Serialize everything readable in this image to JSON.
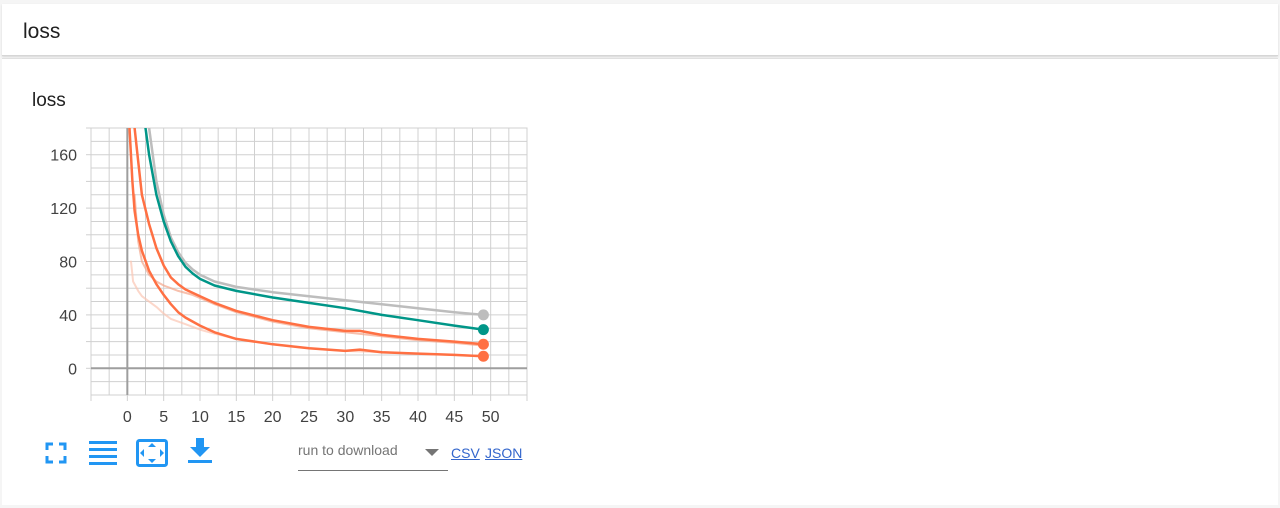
{
  "header": {
    "title": "loss"
  },
  "card": {
    "chart_title": "loss"
  },
  "toolbar": {
    "icons": [
      "fullscreen-icon",
      "toggle-log-scale-icon",
      "fit-domain-icon",
      "download-icon"
    ],
    "icon_color": "#2196f3"
  },
  "download": {
    "select_label": "run to download",
    "csv_label": "CSV",
    "json_label": "JSON"
  },
  "colors": {
    "grid": "#d0d0d0",
    "axis": "#9e9e9e",
    "accent": "#2196f3"
  },
  "chart_data": {
    "type": "line",
    "title": "loss",
    "xlabel": "",
    "ylabel": "",
    "xlim": [
      -5,
      55
    ],
    "ylim": [
      -20,
      180
    ],
    "x_ticks": [
      0,
      5,
      10,
      15,
      20,
      25,
      30,
      35,
      40,
      45,
      50
    ],
    "y_ticks": [
      0,
      40,
      80,
      120,
      160
    ],
    "grid": true,
    "series": [
      {
        "color": "#bdbdbd",
        "smoothed": false,
        "points": [
          [
            3,
            180
          ],
          [
            4,
            140
          ],
          [
            5,
            115
          ],
          [
            6,
            98
          ],
          [
            7,
            87
          ],
          [
            8,
            79
          ],
          [
            9,
            74
          ],
          [
            10,
            70
          ],
          [
            12,
            65
          ],
          [
            15,
            61
          ],
          [
            20,
            57
          ],
          [
            25,
            54
          ],
          [
            30,
            51
          ],
          [
            35,
            48
          ],
          [
            40,
            45
          ],
          [
            45,
            42
          ],
          [
            49,
            40
          ]
        ]
      },
      {
        "color": "#009688",
        "smoothed": false,
        "points": [
          [
            2.5,
            180
          ],
          [
            3,
            160
          ],
          [
            4,
            130
          ],
          [
            5,
            110
          ],
          [
            6,
            95
          ],
          [
            7,
            84
          ],
          [
            8,
            76
          ],
          [
            9,
            71
          ],
          [
            10,
            67
          ],
          [
            12,
            62
          ],
          [
            15,
            58
          ],
          [
            20,
            53
          ],
          [
            25,
            49
          ],
          [
            30,
            45
          ],
          [
            35,
            40
          ],
          [
            40,
            36
          ],
          [
            45,
            32
          ],
          [
            49,
            29
          ]
        ]
      },
      {
        "color": "#ff7043",
        "smoothed": true,
        "points": [
          [
            1,
            180
          ],
          [
            1.5,
            155
          ],
          [
            2,
            130
          ],
          [
            3,
            108
          ],
          [
            4,
            90
          ],
          [
            5,
            77
          ],
          [
            6,
            68
          ],
          [
            7,
            63
          ],
          [
            8,
            59
          ],
          [
            10,
            54
          ],
          [
            12,
            49
          ],
          [
            15,
            43
          ],
          [
            20,
            36
          ],
          [
            25,
            31
          ],
          [
            30,
            28
          ],
          [
            32,
            28
          ],
          [
            35,
            25
          ],
          [
            40,
            22
          ],
          [
            45,
            20
          ],
          [
            49,
            18
          ]
        ]
      },
      {
        "color": "#f4a58a",
        "smoothed": false,
        "points": [
          [
            1,
            130
          ],
          [
            1.5,
            95
          ],
          [
            2,
            80
          ],
          [
            3,
            70
          ],
          [
            4,
            65
          ],
          [
            5,
            62
          ],
          [
            6,
            60
          ],
          [
            7,
            58
          ],
          [
            9,
            55
          ],
          [
            12,
            48
          ],
          [
            15,
            42
          ],
          [
            20,
            35
          ],
          [
            25,
            30
          ],
          [
            30,
            27
          ],
          [
            35,
            24
          ],
          [
            40,
            21
          ],
          [
            45,
            19
          ],
          [
            49,
            17
          ]
        ]
      },
      {
        "color": "#ff7043",
        "smoothed": true,
        "points": [
          [
            0.3,
            180
          ],
          [
            0.7,
            140
          ],
          [
            1,
            118
          ],
          [
            1.5,
            100
          ],
          [
            2,
            88
          ],
          [
            3,
            73
          ],
          [
            4,
            63
          ],
          [
            5,
            55
          ],
          [
            6,
            48
          ],
          [
            7,
            42
          ],
          [
            8,
            38
          ],
          [
            10,
            32
          ],
          [
            12,
            27
          ],
          [
            15,
            22
          ],
          [
            20,
            18
          ],
          [
            25,
            15
          ],
          [
            30,
            13
          ],
          [
            32,
            14
          ],
          [
            35,
            12
          ],
          [
            40,
            11
          ],
          [
            45,
            10
          ],
          [
            49,
            9
          ]
        ]
      },
      {
        "color": "#fbc6b3",
        "smoothed": false,
        "points": [
          [
            0.5,
            80
          ],
          [
            0.8,
            65
          ],
          [
            1.5,
            58
          ],
          [
            2,
            54
          ],
          [
            3,
            50
          ],
          [
            4,
            46
          ],
          [
            5,
            41
          ],
          [
            6,
            37
          ],
          [
            8,
            33
          ],
          [
            10,
            29
          ],
          [
            12,
            26
          ],
          [
            15,
            22
          ],
          [
            20,
            18
          ],
          [
            25,
            15
          ],
          [
            30,
            13
          ],
          [
            35,
            12
          ],
          [
            40,
            11
          ],
          [
            45,
            10
          ],
          [
            49,
            9
          ]
        ]
      }
    ],
    "end_markers": [
      {
        "x": 49,
        "y": 40,
        "color": "#bdbdbd"
      },
      {
        "x": 49,
        "y": 29,
        "color": "#009688"
      },
      {
        "x": 49,
        "y": 18,
        "color": "#ff7043"
      },
      {
        "x": 49,
        "y": 9,
        "color": "#ff7043"
      }
    ]
  }
}
